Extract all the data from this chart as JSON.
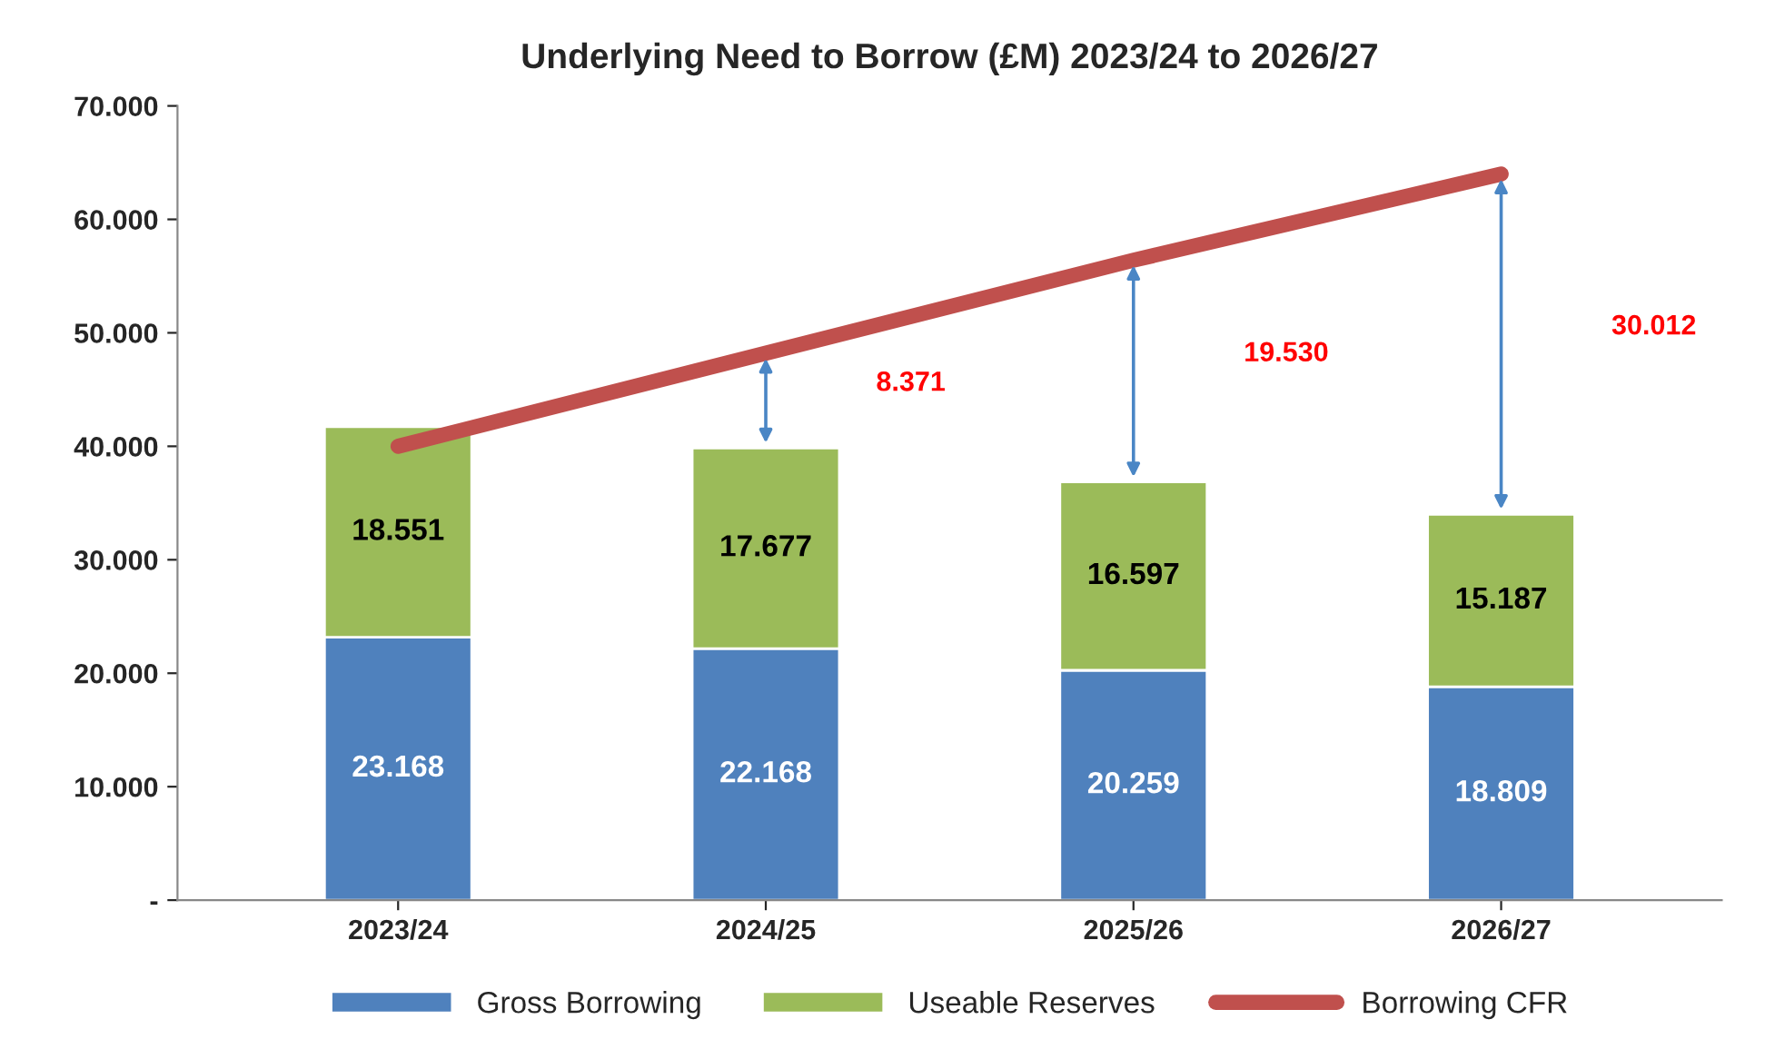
{
  "chart_data": {
    "type": "bar",
    "title": "Underlying Need to Borrow (£M) 2023/24 to 2026/27",
    "categories": [
      "2023/24",
      "2024/25",
      "2025/26",
      "2026/27"
    ],
    "stacked": true,
    "series": [
      {
        "name": "Gross Borrowing",
        "color": "#4f81bd",
        "values": [
          23.168,
          22.168,
          20.259,
          18.809
        ],
        "value_labels": [
          "23.168",
          "22.168",
          "20.259",
          "18.809"
        ]
      },
      {
        "name": "Useable Reserves",
        "color": "#9bbb59",
        "values": [
          18.551,
          17.677,
          16.597,
          15.187
        ],
        "value_labels": [
          "18.551",
          "17.677",
          "16.597",
          "15.187"
        ]
      },
      {
        "name": "Borrowing CFR",
        "type": "line",
        "color": "#c0504d",
        "values": [
          40.0,
          48.2,
          56.4,
          64.0
        ]
      }
    ],
    "ylim": [
      0,
      70
    ],
    "yticks": [
      {
        "value": 0,
        "label": "-"
      },
      {
        "value": 10,
        "label": "10.000"
      },
      {
        "value": 20,
        "label": "20.000"
      },
      {
        "value": 30,
        "label": "30.000"
      },
      {
        "value": 40,
        "label": "40.000"
      },
      {
        "value": 50,
        "label": "50.000"
      },
      {
        "value": 60,
        "label": "60.000"
      },
      {
        "value": 70,
        "label": "70.000"
      }
    ],
    "annotations": [
      "8.371",
      "19.530",
      "30.012"
    ],
    "grid": false,
    "legend": "bottom"
  }
}
